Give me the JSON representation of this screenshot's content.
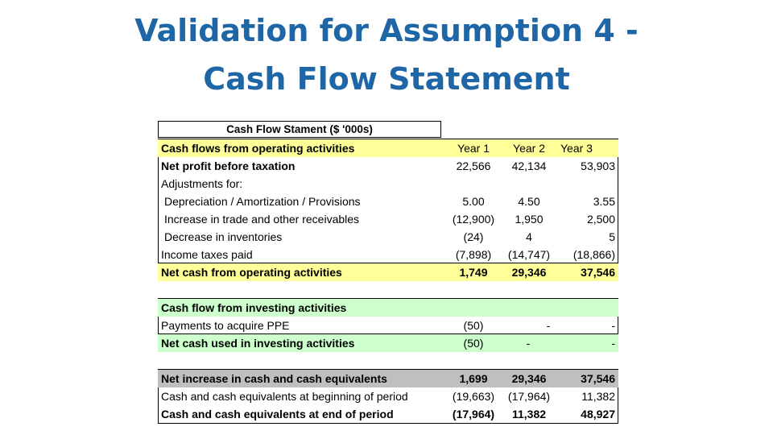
{
  "slide": {
    "title_line1": "Validation for Assumption 4 -",
    "title_line2": "Cash Flow Statement"
  },
  "table": {
    "heading": "Cash Flow Stament ($ '000s)",
    "operating": {
      "header": {
        "label": "Cash flows from operating activities",
        "y1": "Year 1",
        "y2": "Year 2",
        "y3": "Year 3"
      },
      "rows": [
        {
          "label": "Net profit before taxation",
          "y1": "22,566",
          "y2": "42,134",
          "y3": "53,903"
        },
        {
          "label": "Adjustments for:",
          "y1": "",
          "y2": "",
          "y3": ""
        },
        {
          "label": "Depreciation / Amortization / Provisions",
          "y1": "5.00",
          "y2": "4.50",
          "y3": "3.55"
        },
        {
          "label": "Increase in trade and other receivables",
          "y1": "(12,900)",
          "y2": "1,950",
          "y3": "2,500"
        },
        {
          "label": "Decrease in inventories",
          "y1": "(24)",
          "y2": "4",
          "y3": "5"
        },
        {
          "label": "Income taxes paid",
          "y1": "(7,898)",
          "y2": "(14,747)",
          "y3": "(18,866)"
        }
      ],
      "total": {
        "label": "Net cash from operating activities",
        "y1": "1,749",
        "y2": "29,346",
        "y3": "37,546"
      }
    },
    "investing": {
      "header": {
        "label": "Cash flow from investing activities"
      },
      "rows": [
        {
          "label": "Payments to acquire PPE",
          "y1": "(50)",
          "y2": "-",
          "y3": "-"
        }
      ],
      "total": {
        "label": "Net cash used in investing activities",
        "y1": "(50)",
        "y2": "-",
        "y3": "-"
      }
    },
    "summary": {
      "rows": [
        {
          "label": "Net increase in cash and cash equivalents",
          "y1": "1,699",
          "y2": "29,346",
          "y3": "37,546"
        },
        {
          "label": "Cash and cash equivalents at beginning of period",
          "y1": "(19,663)",
          "y2": "(17,964)",
          "y3": "11,382"
        },
        {
          "label": "Cash and cash equivalents at end of period",
          "y1": "(17,964)",
          "y2": "11,382",
          "y3": "48,927"
        }
      ]
    },
    "colors": {
      "yellow": "#ffff99",
      "green": "#ccffcc",
      "grey": "#bfbfbf",
      "title": "#1f66a6"
    }
  }
}
